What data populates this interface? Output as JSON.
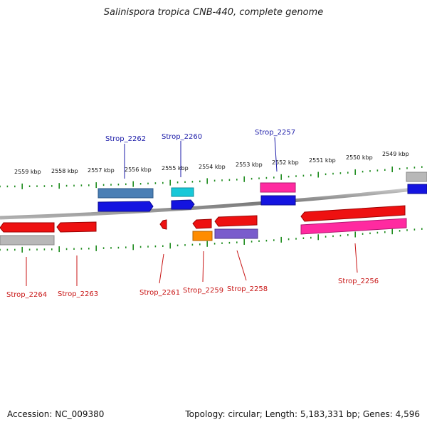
{
  "title": "Salinispora tropica CNB-440, complete genome",
  "footer": {
    "accession": "Accession: NC_009380",
    "summary": "Topology: circular; Length: 5,183,331 bp; Genes: 4,596"
  },
  "colors": {
    "backbone": "#8a8a8a",
    "tick": "#1e8c1e",
    "forward_label": "#1a1aa8",
    "reverse_label": "#c81414"
  },
  "kbp_labels": [
    "2559 kbp",
    "2558 kbp",
    "2557 kbp",
    "2556 kbp",
    "2555 kbp",
    "2554 kbp",
    "2553 kbp",
    "2552 kbp",
    "2551 kbp",
    "2550 kbp",
    "2549 kbp"
  ],
  "gene_labels": {
    "top": [
      "Strop_2262",
      "Strop_2260",
      "Strop_2257"
    ],
    "bottom": [
      "Strop_2264",
      "Strop_2263",
      "Strop_2261",
      "Strop_2259",
      "Strop_2258",
      "Strop_2256"
    ]
  }
}
